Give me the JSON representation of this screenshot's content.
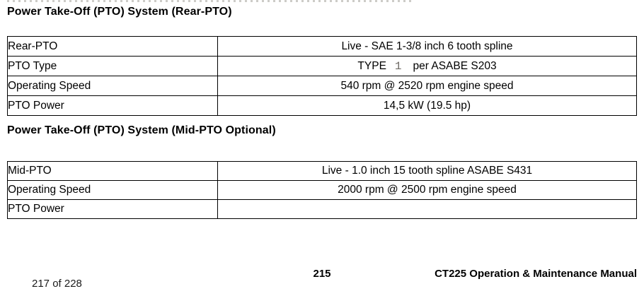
{
  "document": {
    "sections": [
      {
        "heading": "Power Take-Off (PTO) System (Rear-PTO)",
        "rows": [
          {
            "label": "Rear-PTO",
            "value": "Live - SAE 1-3/8 inch 6 tooth spline"
          },
          {
            "label": "PTO Type",
            "value_prefix": "TYPE",
            "value_highlight": "1",
            "value_suffix": "per ASABE S203"
          },
          {
            "label": "Operating Speed",
            "value": "540 rpm @ 2520 rpm engine speed"
          },
          {
            "label": "PTO Power",
            "value": "14,5 kW (19.5 hp)"
          }
        ]
      },
      {
        "heading": "Power Take-Off (PTO) System (Mid-PTO Optional)",
        "rows": [
          {
            "label": "Mid-PTO",
            "value": "Live - 1.0 inch 15 tooth spline ASABE S431"
          },
          {
            "label": "Operating Speed",
            "value": "2000 rpm @ 2500 rpm engine speed"
          },
          {
            "label": "PTO Power",
            "value": ""
          }
        ]
      }
    ],
    "footer": {
      "page_number": "215",
      "manual_title": "CT225 Operation & Maintenance Manual"
    }
  },
  "viewer": {
    "page_position": "217 of 228"
  },
  "colors": {
    "text": "#000000",
    "type_number_gray": "#6e6a64",
    "table_border": "#000000",
    "background": "#ffffff"
  }
}
